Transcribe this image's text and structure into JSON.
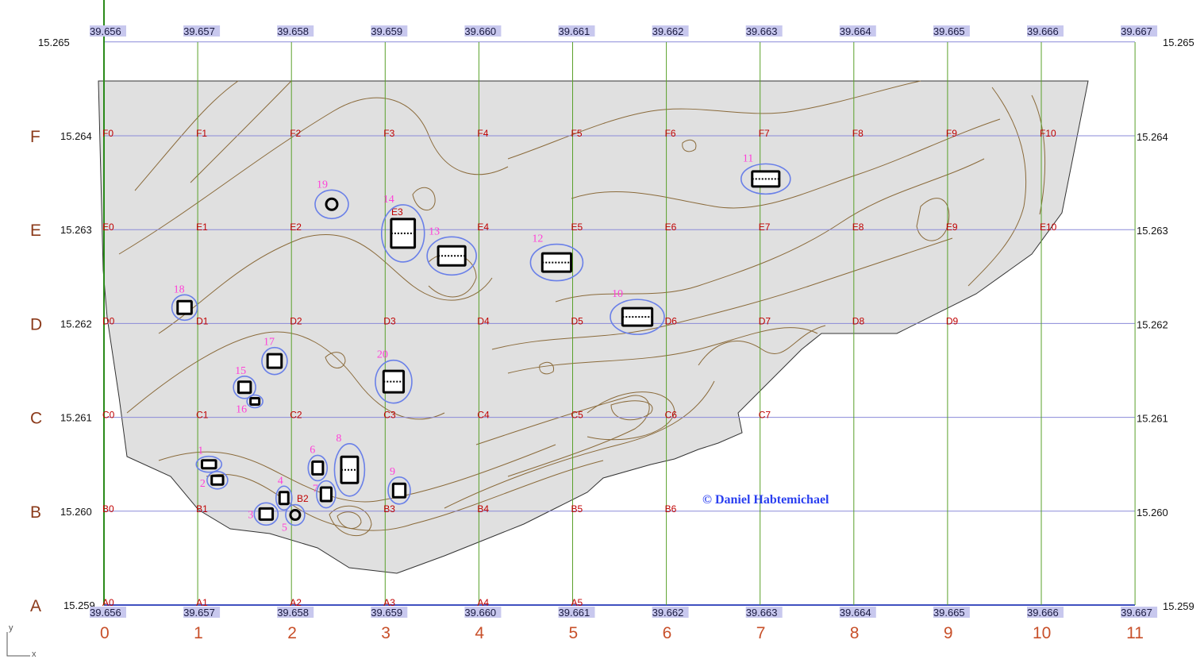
{
  "map": {
    "copyright": "© Daniel Habtemichael",
    "axis_hint": {
      "y": "y",
      "x": "x"
    },
    "longitudes": [
      "39.656",
      "39.657",
      "39.658",
      "39.659",
      "39.660",
      "39.661",
      "39.662",
      "39.663",
      "39.664",
      "39.665",
      "39.666",
      "39.667"
    ],
    "latitudes": [
      "15.265",
      "15.264",
      "15.263",
      "15.262",
      "15.261",
      "15.260",
      "15.259"
    ],
    "column_numbers": [
      "0",
      "1",
      "2",
      "3",
      "4",
      "5",
      "6",
      "7",
      "8",
      "9",
      "10",
      "11"
    ],
    "rows": [
      {
        "letter": "F",
        "lat": 15.264,
        "cells": [
          "F0",
          "F1",
          "F2",
          "F3",
          "F4",
          "F5",
          "F6",
          "F7",
          "F8",
          "F9",
          "F10"
        ]
      },
      {
        "letter": "E",
        "lat": 15.263,
        "cells": [
          "E0",
          "E1",
          "E2",
          "E3",
          "E4",
          "E5",
          "E6",
          "E7",
          "E8",
          "E9",
          "E10"
        ]
      },
      {
        "letter": "D",
        "lat": 15.262,
        "cells": [
          "D0",
          "D1",
          "D2",
          "D3",
          "D4",
          "D5",
          "D6",
          "D7",
          "D8",
          "D9"
        ]
      },
      {
        "letter": "C",
        "lat": 15.261,
        "cells": [
          "C0",
          "C1",
          "C2",
          "C3",
          "C4",
          "C5",
          "C6",
          "C7"
        ]
      },
      {
        "letter": "B",
        "lat": 15.26,
        "cells": [
          "B0",
          "B1",
          "B2",
          "B3",
          "B4",
          "B5",
          "B6"
        ]
      },
      {
        "letter": "A",
        "lat": 15.259,
        "cells": [
          "A0",
          "A1",
          "A2",
          "A3",
          "A4",
          "A5"
        ]
      }
    ],
    "sites": [
      {
        "n": "1",
        "lon": 39.65712,
        "lat": 15.2605
      },
      {
        "n": "2",
        "lon": 39.65721,
        "lat": 15.26033
      },
      {
        "n": "3",
        "lon": 39.65773,
        "lat": 15.25997
      },
      {
        "n": "4",
        "lon": 39.65792,
        "lat": 15.26014
      },
      {
        "n": "5",
        "lon": 39.65804,
        "lat": 15.25996
      },
      {
        "n": "6",
        "lon": 39.65828,
        "lat": 15.26046
      },
      {
        "n": "7",
        "lon": 39.65837,
        "lat": 15.26018
      },
      {
        "n": "8",
        "lon": 39.65862,
        "lat": 15.26044
      },
      {
        "n": "9",
        "lon": 39.65915,
        "lat": 15.26022
      },
      {
        "n": "10",
        "lon": 39.66169,
        "lat": 15.26207
      },
      {
        "n": "11",
        "lon": 39.66306,
        "lat": 15.26354
      },
      {
        "n": "12",
        "lon": 39.66083,
        "lat": 15.26265
      },
      {
        "n": "13",
        "lon": 39.65971,
        "lat": 15.26272
      },
      {
        "n": "14",
        "lon": 39.65919,
        "lat": 15.26296
      },
      {
        "n": "15",
        "lon": 39.6575,
        "lat": 15.26132
      },
      {
        "n": "16",
        "lon": 39.65761,
        "lat": 15.26117
      },
      {
        "n": "17",
        "lon": 39.65782,
        "lat": 15.2616
      },
      {
        "n": "18",
        "lon": 39.65686,
        "lat": 15.26217
      },
      {
        "n": "19",
        "lon": 39.65843,
        "lat": 15.26327
      },
      {
        "n": "20",
        "lon": 39.65909,
        "lat": 15.26138
      }
    ],
    "colors": {
      "survey_area": "#e0e0e0",
      "contour": "#8a6a3a",
      "lat_lines": "#8a8ad8",
      "lon_lines": "#5aa02a",
      "site_ring": "#6a80e8",
      "site_number": "#ff3fd8",
      "cell_label": "#c00000"
    }
  }
}
